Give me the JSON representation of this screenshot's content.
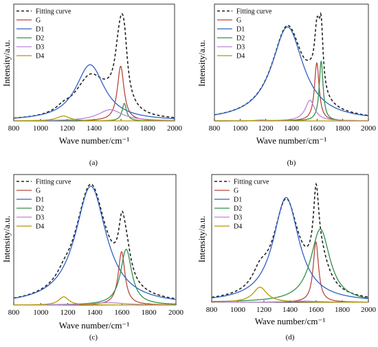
{
  "figure": {
    "xlabel": "Wave number/cm⁻¹",
    "ylabel": "Intensity/a.u."
  },
  "chart_data": [
    {
      "type": "line",
      "caption": "(a)",
      "xlabel": "Wave number/cm⁻¹",
      "ylabel": "Intensity/a.u.",
      "xlim": [
        800,
        2000
      ],
      "xticks": [
        "800",
        "1000",
        "1200",
        "1400",
        "1600",
        "1800",
        "2000"
      ],
      "legend_position": "top-left",
      "series": [
        {
          "name": "Fitting curve",
          "dashed": true,
          "color": "#222222",
          "peaks": [
            [
              1580,
              35,
              0.35
            ],
            [
              1610,
              40,
              1.0
            ],
            [
              1630,
              20,
              0.2
            ],
            [
              1370,
              140,
              0.58
            ],
            [
              1520,
              110,
              0.12
            ],
            [
              1170,
              70,
              0.07
            ]
          ]
        },
        {
          "name": "G",
          "color": "#b5483d",
          "peaks": [
            [
              1598,
              30,
              0.78
            ]
          ]
        },
        {
          "name": "D1",
          "color": "#2e5fc5",
          "peaks": [
            [
              1370,
              130,
              0.8
            ]
          ]
        },
        {
          "name": "D2",
          "color": "#2f8f4a",
          "peaks": [
            [
              1625,
              20,
              0.25
            ]
          ]
        },
        {
          "name": "D3",
          "color": "#b784d9",
          "peaks": [
            [
              1520,
              110,
              0.16
            ]
          ]
        },
        {
          "name": "D4",
          "color": "#b39800",
          "peaks": [
            [
              1170,
              60,
              0.07
            ]
          ]
        }
      ]
    },
    {
      "type": "line",
      "caption": "(b)",
      "xlabel": "Wave number/cm⁻¹",
      "ylabel": "Intensity/a.u.",
      "xlim": [
        800,
        2000
      ],
      "xticks": [
        "800",
        "1000",
        "1200",
        "1400",
        "1600",
        "1800",
        "2000"
      ],
      "legend_position": "top-left",
      "series": [
        {
          "name": "Fitting curve",
          "dashed": true,
          "color": "#222222",
          "peaks": [
            [
              1370,
              150,
              1.0
            ],
            [
              1600,
              25,
              0.62
            ],
            [
              1632,
              18,
              0.62
            ],
            [
              1545,
              45,
              0.1
            ]
          ]
        },
        {
          "name": "G",
          "color": "#b5483d",
          "peaks": [
            [
              1598,
              22,
              0.62
            ]
          ]
        },
        {
          "name": "D1",
          "color": "#2e5fc5",
          "peaks": [
            [
              1370,
              150,
              1.0
            ]
          ]
        },
        {
          "name": "D2",
          "color": "#2f8f4a",
          "peaks": [
            [
              1632,
              18,
              0.64
            ]
          ]
        },
        {
          "name": "D3",
          "color": "#b784d9",
          "peaks": [
            [
              1545,
              45,
              0.22
            ]
          ]
        },
        {
          "name": "D4",
          "color": "#b39800",
          "peaks": [
            [
              1170,
              60,
              0.01
            ]
          ]
        }
      ]
    },
    {
      "type": "line",
      "caption": "(c)",
      "xlabel": "Wave number/cm⁻¹",
      "ylabel": "Intensity/a.u.",
      "xlim": [
        800,
        2000
      ],
      "xticks": [
        "800",
        "1000",
        "1200",
        "1400",
        "1600",
        "1800",
        "2000"
      ],
      "legend_position": "top-left",
      "series": [
        {
          "name": "Fitting curve",
          "dashed": true,
          "color": "#222222",
          "peaks": [
            [
              1370,
              140,
              1.0
            ],
            [
              1600,
              30,
              0.35
            ],
            [
              1632,
              45,
              0.25
            ],
            [
              1170,
              60,
              0.05
            ]
          ]
        },
        {
          "name": "G",
          "color": "#b5483d",
          "peaks": [
            [
              1598,
              30,
              0.45
            ]
          ]
        },
        {
          "name": "D1",
          "color": "#2e5fc5",
          "peaks": [
            [
              1370,
              140,
              1.0
            ]
          ]
        },
        {
          "name": "D2",
          "color": "#2f8f4a",
          "peaks": [
            [
              1632,
              50,
              0.47
            ]
          ]
        },
        {
          "name": "D3",
          "color": "#b784d9",
          "peaks": [
            [
              1500,
              150,
              0.02
            ]
          ]
        },
        {
          "name": "D4",
          "color": "#b39800",
          "peaks": [
            [
              1170,
              45,
              0.07
            ]
          ]
        }
      ]
    },
    {
      "type": "line",
      "caption": "(d)",
      "xlabel": "Wave number/cm⁻¹",
      "ylabel": "Intensity/a.u.",
      "xlim": [
        800,
        2000
      ],
      "xticks": [
        "800",
        "1000",
        "1200",
        "1400",
        "1600",
        "1800",
        "2000"
      ],
      "legend_position": "top-left",
      "series": [
        {
          "name": "Fitting curve",
          "dashed": true,
          "color": "#222222",
          "peaks": [
            [
              1370,
              120,
              0.78
            ],
            [
              1600,
              25,
              0.55
            ],
            [
              1632,
              80,
              0.25
            ],
            [
              1170,
              70,
              0.12
            ]
          ]
        },
        {
          "name": "G",
          "color": "#b5483d",
          "peaks": [
            [
              1598,
              25,
              0.48
            ]
          ]
        },
        {
          "name": "D1",
          "color": "#2e5fc5",
          "peaks": [
            [
              1370,
              120,
              0.83
            ]
          ]
        },
        {
          "name": "D2",
          "color": "#2f8f4a",
          "peaks": [
            [
              1632,
              90,
              0.58
            ]
          ]
        },
        {
          "name": "D3",
          "color": "#b784d9",
          "peaks": [
            [
              1500,
              150,
              0.01
            ]
          ]
        },
        {
          "name": "D4",
          "color": "#b39800",
          "peaks": [
            [
              1170,
              65,
              0.12
            ]
          ]
        }
      ]
    }
  ]
}
